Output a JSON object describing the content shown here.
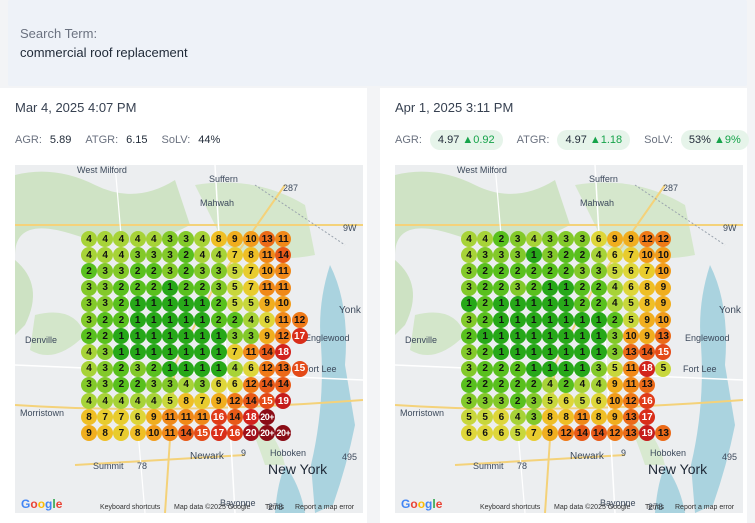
{
  "search": {
    "label": "Search Term:",
    "value": "commercial roof replacement"
  },
  "panels": [
    {
      "date": "Mar 4, 2025 4:07 PM",
      "metrics": [
        {
          "label": "AGR:",
          "value": "5.89",
          "delta": ""
        },
        {
          "label": "ATGR:",
          "value": "6.15",
          "delta": ""
        },
        {
          "label": "SoLV:",
          "value": "44%",
          "delta": ""
        }
      ],
      "grid": [
        [
          "4",
          "4",
          "4",
          "4",
          "4",
          "3",
          "3",
          "4",
          "8",
          "9",
          "10",
          "13",
          "11"
        ],
        [
          "4",
          "4",
          "4",
          "3",
          "3",
          "3",
          "2",
          "4",
          "4",
          "7",
          "8",
          "11",
          "14"
        ],
        [
          "2",
          "3",
          "3",
          "2",
          "2",
          "3",
          "2",
          "3",
          "3",
          "5",
          "7",
          "10",
          "11"
        ],
        [
          "3",
          "3",
          "2",
          "2",
          "2",
          "1",
          "2",
          "2",
          "3",
          "5",
          "7",
          "11",
          "11"
        ],
        [
          "3",
          "3",
          "2",
          "1",
          "1",
          "1",
          "1",
          "1",
          "2",
          "5",
          "5",
          "9",
          "10"
        ],
        [
          "3",
          "2",
          "2",
          "1",
          "1",
          "1",
          "1",
          "1",
          "2",
          "2",
          "4",
          "6",
          "11",
          "12"
        ],
        [
          "2",
          "2",
          "1",
          "1",
          "1",
          "1",
          "1",
          "1",
          "1",
          "3",
          "3",
          "9",
          "12",
          "17"
        ],
        [
          "4",
          "3",
          "1",
          "1",
          "1",
          "1",
          "1",
          "1",
          "1",
          "7",
          "11",
          "14",
          "18"
        ],
        [
          "4",
          "3",
          "2",
          "3",
          "2",
          "1",
          "1",
          "1",
          "1",
          "4",
          "6",
          "12",
          "13",
          "15"
        ],
        [
          "3",
          "3",
          "2",
          "2",
          "3",
          "3",
          "4",
          "3",
          "6",
          "6",
          "12",
          "14",
          "14"
        ],
        [
          "4",
          "4",
          "4",
          "4",
          "4",
          "5",
          "8",
          "7",
          "9",
          "12",
          "14",
          "15",
          "19"
        ],
        [
          "8",
          "7",
          "7",
          "6",
          "9",
          "11",
          "11",
          "11",
          "16",
          "14",
          "18",
          "20+"
        ],
        [
          "9",
          "8",
          "7",
          "8",
          "10",
          "11",
          "14",
          "15",
          "17",
          "16",
          "20",
          "20+",
          "20+"
        ]
      ]
    },
    {
      "date": "Apr 1, 2025 3:11 PM",
      "metrics": [
        {
          "label": "AGR:",
          "value": "4.97",
          "delta": "0.92"
        },
        {
          "label": "ATGR:",
          "value": "4.97",
          "delta": "1.18"
        },
        {
          "label": "SoLV:",
          "value": "53%",
          "delta": "9%"
        }
      ],
      "grid": [
        [
          "4",
          "4",
          "2",
          "3",
          "4",
          "3",
          "3",
          "3",
          "6",
          "9",
          "9",
          "12",
          "12"
        ],
        [
          "4",
          "3",
          "3",
          "3",
          "1",
          "3",
          "2",
          "2",
          "4",
          "6",
          "7",
          "10",
          "10"
        ],
        [
          "3",
          "2",
          "2",
          "2",
          "2",
          "2",
          "2",
          "3",
          "3",
          "5",
          "6",
          "7",
          "10"
        ],
        [
          "3",
          "2",
          "2",
          "3",
          "2",
          "1",
          "1",
          "2",
          "2",
          "4",
          "6",
          "8",
          "9"
        ],
        [
          "1",
          "2",
          "1",
          "1",
          "1",
          "1",
          "1",
          "2",
          "2",
          "4",
          "5",
          "8",
          "9"
        ],
        [
          "3",
          "2",
          "1",
          "1",
          "1",
          "1",
          "1",
          "1",
          "1",
          "2",
          "5",
          "9",
          "10"
        ],
        [
          "2",
          "1",
          "1",
          "1",
          "1",
          "1",
          "1",
          "1",
          "1",
          "3",
          "10",
          "9",
          "13"
        ],
        [
          "3",
          "2",
          "1",
          "1",
          "1",
          "1",
          "1",
          "1",
          "1",
          "3",
          "13",
          "14",
          "15"
        ],
        [
          "3",
          "2",
          "2",
          "2",
          "1",
          "1",
          "1",
          "1",
          "3",
          "5",
          "11",
          "18",
          "5"
        ],
        [
          "2",
          "2",
          "2",
          "2",
          "2",
          "4",
          "2",
          "4",
          "4",
          "9",
          "11",
          "13"
        ],
        [
          "3",
          "3",
          "3",
          "2",
          "3",
          "5",
          "6",
          "5",
          "6",
          "10",
          "12",
          "16"
        ],
        [
          "5",
          "5",
          "6",
          "4",
          "3",
          "8",
          "8",
          "11",
          "8",
          "9",
          "13",
          "17"
        ],
        [
          "6",
          "6",
          "6",
          "5",
          "7",
          "9",
          "12",
          "14",
          "14",
          "12",
          "13",
          "19",
          "13"
        ]
      ]
    }
  ],
  "map_labels": {
    "west_milford": "West Milford",
    "suffern": "Suffern",
    "mahwah": "Mahwah",
    "denville": "Denville",
    "englewood": "Englewood",
    "fort_lee": "Fort Lee",
    "morristown": "Morristown",
    "summit": "Summit",
    "newark": "Newark",
    "hoboken": "Hoboken",
    "new_york": "New York",
    "yonkers": "Yonk",
    "bayonne": "Bayonne",
    "hwy_287": "287",
    "hwy_9w": "9W",
    "hwy_78": "78",
    "hwy_9": "9",
    "hwy_495": "495",
    "hwy_278": "278"
  },
  "attribution": {
    "keyboard": "Keyboard shortcuts",
    "mapdata": "Map data ©2025 Google",
    "terms": "Terms",
    "report": "Report a map error",
    "google_letters": [
      "G",
      "o",
      "o",
      "g",
      "l",
      "e"
    ]
  },
  "colors": {
    "level_1": "#27a819",
    "level_2": "#59c01e",
    "level_3": "#83c92a",
    "level_4": "#a7d338",
    "level_5": "#c8d73c",
    "level_6": "#ded63a",
    "level_7": "#e8cc2e",
    "level_8": "#efbf26",
    "level_9": "#f0ae1f",
    "level_10": "#f29c1b",
    "level_11": "#f08919",
    "level_12": "#ef7a18",
    "level_13": "#eb6a18",
    "level_14": "#e85a18",
    "level_15": "#e44a18",
    "level_16": "#e03b18",
    "level_17": "#d92e1a",
    "level_18": "#d2231c",
    "level_19": "#c51c1c",
    "level_20": "#a0101a",
    "level_20plus": "#8a0c16"
  }
}
